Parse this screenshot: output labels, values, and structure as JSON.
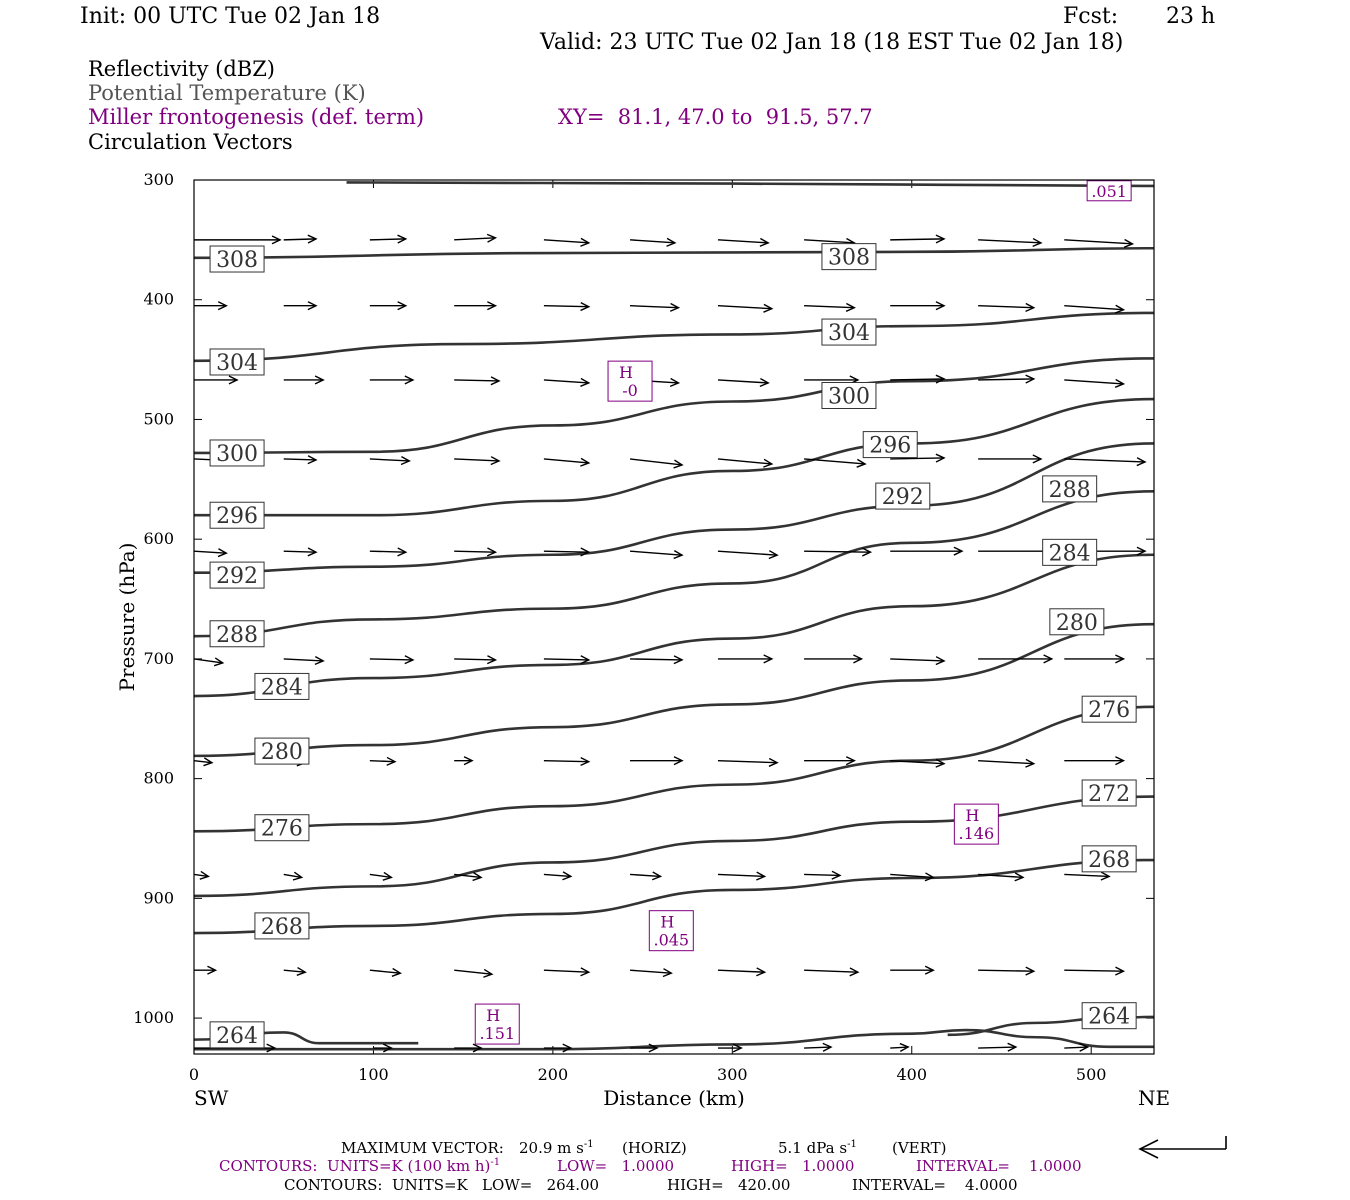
{
  "header": {
    "init": "Init: 00 UTC Tue 02 Jan 18",
    "fcst_label": "Fcst:",
    "fcst_value": "23 h",
    "valid": "Valid: 23 UTC Tue 02 Jan 18 (18 EST Tue 02 Jan 18)"
  },
  "legend": {
    "reflectivity": "Reflectivity (dBZ)",
    "theta": "Potential Temperature (K)",
    "frontogenesis": "Miller frontogenesis (def. term)",
    "xy": "XY=  81.1, 47.0 to  91.5, 57.7",
    "vectors": "Circulation Vectors"
  },
  "colors": {
    "purple": "#800080",
    "contour": "#333333",
    "gray_text": "#555555"
  },
  "footer": {
    "max_vector_label": "MAXIMUM VECTOR:",
    "max_vector_horiz": "20.9 m s",
    "horiz_tag": "(HORIZ)",
    "max_vector_vert": "5.1 dPa s",
    "vert_tag": "(VERT)",
    "purple_contours": "CONTOURS:  UNITS=K (100 km h)",
    "purple_low": "LOW=   1.0000",
    "purple_high": "HIGH=   1.0000",
    "purple_interval": "INTERVAL=    1.0000",
    "black_contours": "CONTOURS:  UNITS=K   LOW=   264.00",
    "black_high": "HIGH=   420.00",
    "black_interval": "INTERVAL=    4.0000",
    "superscript_minus1": "-1"
  },
  "chart_data": {
    "type": "cross-section",
    "xlabel": "Distance (km)",
    "ylabel": "Pressure (hPa)",
    "xlim": [
      0,
      535
    ],
    "ylim": [
      300,
      1030
    ],
    "y_scale": "linear, inverted (pressure decreasing upward)",
    "x_ticks": [
      "0",
      "100",
      "200",
      "300",
      "400",
      "500"
    ],
    "y_ticks": [
      "300",
      "400",
      "500",
      "600",
      "700",
      "800",
      "900",
      "1000"
    ],
    "left_end": "SW",
    "right_end": "NE",
    "theta_contours": [
      {
        "label": "308",
        "points": [
          [
            0,
            365
          ],
          [
            200,
            361
          ],
          [
            400,
            360
          ],
          [
            535,
            357
          ]
        ]
      },
      {
        "label": "304",
        "points": [
          [
            0,
            451
          ],
          [
            150,
            437
          ],
          [
            300,
            429
          ],
          [
            400,
            422
          ],
          [
            535,
            411
          ]
        ]
      },
      {
        "label": "300",
        "points": [
          [
            0,
            528
          ],
          [
            100,
            527
          ],
          [
            200,
            505
          ],
          [
            300,
            485
          ],
          [
            400,
            468
          ],
          [
            535,
            449
          ]
        ]
      },
      {
        "label": "296",
        "points": [
          [
            0,
            580
          ],
          [
            100,
            580
          ],
          [
            200,
            568
          ],
          [
            300,
            543
          ],
          [
            400,
            520
          ],
          [
            535,
            483
          ]
        ]
      },
      {
        "label": "292",
        "points": [
          [
            0,
            628
          ],
          [
            100,
            623
          ],
          [
            200,
            613
          ],
          [
            300,
            592
          ],
          [
            400,
            572
          ],
          [
            535,
            520
          ]
        ]
      },
      {
        "label": "288",
        "points": [
          [
            0,
            681
          ],
          [
            100,
            667
          ],
          [
            200,
            658
          ],
          [
            300,
            637
          ],
          [
            400,
            603
          ],
          [
            535,
            560
          ]
        ]
      },
      {
        "label": "284",
        "points": [
          [
            0,
            731
          ],
          [
            100,
            716
          ],
          [
            200,
            705
          ],
          [
            300,
            683
          ],
          [
            400,
            656
          ],
          [
            535,
            613
          ]
        ]
      },
      {
        "label": "280",
        "points": [
          [
            0,
            781
          ],
          [
            100,
            772
          ],
          [
            200,
            757
          ],
          [
            300,
            738
          ],
          [
            400,
            718
          ],
          [
            535,
            671
          ]
        ]
      },
      {
        "label": "276",
        "points": [
          [
            0,
            844
          ],
          [
            100,
            838
          ],
          [
            200,
            823
          ],
          [
            300,
            805
          ],
          [
            400,
            785
          ],
          [
            535,
            740
          ]
        ]
      },
      {
        "label": "272",
        "points": [
          [
            0,
            898
          ],
          [
            100,
            890
          ],
          [
            200,
            870
          ],
          [
            300,
            852
          ],
          [
            400,
            836
          ],
          [
            535,
            815
          ]
        ]
      },
      {
        "label": "268",
        "points": [
          [
            0,
            929
          ],
          [
            100,
            923
          ],
          [
            200,
            913
          ],
          [
            300,
            893
          ],
          [
            400,
            883
          ],
          [
            535,
            868
          ]
        ]
      },
      {
        "label": "264",
        "points": [
          [
            0,
            1018
          ],
          [
            50,
            1012
          ],
          [
            70,
            1021
          ],
          [
            100,
            1021
          ],
          [
            125,
            1021
          ]
        ]
      },
      {
        "label": "264",
        "points": [
          [
            420,
            1014
          ],
          [
            470,
            1004
          ],
          [
            510,
            1000
          ],
          [
            535,
            999
          ]
        ]
      },
      {
        "label": "",
        "points": [
          [
            0,
            1026
          ],
          [
            200,
            1026
          ],
          [
            300,
            1022
          ],
          [
            400,
            1013
          ],
          [
            430,
            1010
          ],
          [
            470,
            1016
          ],
          [
            510,
            1024
          ],
          [
            535,
            1024
          ]
        ]
      },
      {
        "label": "",
        "points": [
          [
            85,
            302
          ],
          [
            300,
            303
          ],
          [
            535,
            305
          ]
        ]
      }
    ],
    "theta_label_positions": [
      {
        "label": "308",
        "x": 24,
        "y": 366
      },
      {
        "label": "308",
        "x": 365,
        "y": 364
      },
      {
        "label": "304",
        "x": 24,
        "y": 452
      },
      {
        "label": "304",
        "x": 365,
        "y": 427
      },
      {
        "label": "300",
        "x": 24,
        "y": 528
      },
      {
        "label": "300",
        "x": 365,
        "y": 480
      },
      {
        "label": "296",
        "x": 24,
        "y": 580
      },
      {
        "label": "296",
        "x": 388,
        "y": 521
      },
      {
        "label": "292",
        "x": 24,
        "y": 630
      },
      {
        "label": "292",
        "x": 395,
        "y": 564
      },
      {
        "label": "288",
        "x": 24,
        "y": 679
      },
      {
        "label": "288",
        "x": 488,
        "y": 558
      },
      {
        "label": "284",
        "x": 49,
        "y": 723
      },
      {
        "label": "284",
        "x": 488,
        "y": 611
      },
      {
        "label": "280",
        "x": 49,
        "y": 777
      },
      {
        "label": "280",
        "x": 492,
        "y": 669
      },
      {
        "label": "276",
        "x": 49,
        "y": 841
      },
      {
        "label": "276",
        "x": 510,
        "y": 742
      },
      {
        "label": "272",
        "x": 510,
        "y": 812
      },
      {
        "label": "268",
        "x": 49,
        "y": 923
      },
      {
        "label": "268",
        "x": 510,
        "y": 867
      },
      {
        "label": "264",
        "x": 24,
        "y": 1014
      },
      {
        "label": "264",
        "x": 510,
        "y": 998
      }
    ],
    "highs": [
      {
        "symbol": "H",
        "value": "-0",
        "x": 243,
        "y": 468
      },
      {
        "symbol": "H",
        "value": ".146",
        "x": 436,
        "y": 838
      },
      {
        "symbol": "H",
        "value": ".045",
        "x": 266,
        "y": 927
      },
      {
        "symbol": "H",
        "value": ".151",
        "x": 169,
        "y": 1005
      },
      {
        "symbol": "",
        "value": ".051",
        "x": 510,
        "y": 309
      }
    ],
    "vector_rows": [
      {
        "p": 350,
        "vectors": [
          [
            0,
            48,
            0
          ],
          [
            50,
            68,
            -1
          ],
          [
            98,
            118,
            -1
          ],
          [
            145,
            168,
            -2
          ],
          [
            195,
            220,
            3
          ],
          [
            243,
            268,
            3
          ],
          [
            292,
            320,
            3
          ],
          [
            340,
            368,
            3
          ],
          [
            388,
            418,
            -1
          ],
          [
            437,
            472,
            3
          ],
          [
            485,
            523,
            4
          ]
        ]
      },
      {
        "p": 405,
        "vectors": [
          [
            0,
            18,
            0
          ],
          [
            50,
            68,
            0
          ],
          [
            98,
            118,
            0
          ],
          [
            145,
            168,
            0
          ],
          [
            195,
            220,
            1
          ],
          [
            243,
            270,
            2
          ],
          [
            292,
            322,
            3
          ],
          [
            340,
            368,
            2
          ],
          [
            388,
            418,
            0
          ],
          [
            437,
            468,
            2
          ],
          [
            485,
            518,
            4
          ]
        ]
      },
      {
        "p": 467,
        "vectors": [
          [
            0,
            24,
            0
          ],
          [
            50,
            72,
            0
          ],
          [
            98,
            122,
            0
          ],
          [
            145,
            170,
            1
          ],
          [
            195,
            220,
            3
          ],
          [
            243,
            270,
            3
          ],
          [
            292,
            320,
            3
          ],
          [
            340,
            370,
            0
          ],
          [
            388,
            418,
            -1
          ],
          [
            437,
            468,
            -1
          ],
          [
            485,
            518,
            4
          ]
        ]
      },
      {
        "p": 533,
        "vectors": [
          [
            0,
            24,
            2
          ],
          [
            50,
            68,
            1
          ],
          [
            98,
            120,
            2
          ],
          [
            145,
            170,
            2
          ],
          [
            195,
            220,
            4
          ],
          [
            243,
            272,
            6
          ],
          [
            292,
            322,
            5
          ],
          [
            340,
            374,
            5
          ],
          [
            388,
            418,
            -1
          ],
          [
            437,
            472,
            0
          ],
          [
            485,
            530,
            3
          ]
        ]
      },
      {
        "p": 610,
        "vectors": [
          [
            0,
            18,
            2
          ],
          [
            50,
            68,
            1
          ],
          [
            98,
            118,
            1
          ],
          [
            145,
            168,
            1
          ],
          [
            195,
            220,
            1
          ],
          [
            243,
            272,
            4
          ],
          [
            292,
            325,
            4
          ],
          [
            340,
            377,
            1
          ],
          [
            388,
            428,
            0
          ],
          [
            437,
            478,
            0
          ],
          [
            485,
            530,
            0
          ]
        ]
      },
      {
        "p": 700,
        "vectors": [
          [
            0,
            16,
            4
          ],
          [
            50,
            72,
            2
          ],
          [
            98,
            122,
            1
          ],
          [
            145,
            168,
            1
          ],
          [
            195,
            220,
            1
          ],
          [
            243,
            272,
            1
          ],
          [
            292,
            322,
            0
          ],
          [
            340,
            372,
            0
          ],
          [
            388,
            418,
            2
          ],
          [
            437,
            478,
            0
          ],
          [
            485,
            518,
            0
          ]
        ]
      },
      {
        "p": 785,
        "vectors": [
          [
            0,
            10,
            2
          ],
          [
            50,
            62,
            2
          ],
          [
            98,
            112,
            1
          ],
          [
            145,
            155,
            0
          ],
          [
            195,
            220,
            1
          ],
          [
            243,
            272,
            0
          ],
          [
            292,
            325,
            2
          ],
          [
            340,
            368,
            0
          ],
          [
            388,
            418,
            3
          ],
          [
            437,
            468,
            3
          ],
          [
            485,
            518,
            0
          ]
        ]
      },
      {
        "p": 880,
        "vectors": [
          [
            0,
            8,
            2
          ],
          [
            50,
            60,
            3
          ],
          [
            98,
            110,
            3
          ],
          [
            145,
            160,
            3
          ],
          [
            195,
            210,
            2
          ],
          [
            243,
            260,
            2
          ],
          [
            292,
            318,
            2
          ],
          [
            340,
            360,
            1
          ],
          [
            388,
            412,
            3
          ],
          [
            437,
            462,
            3
          ],
          [
            485,
            510,
            2
          ]
        ]
      },
      {
        "p": 960,
        "vectors": [
          [
            0,
            12,
            0
          ],
          [
            50,
            62,
            2
          ],
          [
            98,
            115,
            3
          ],
          [
            145,
            166,
            4
          ],
          [
            195,
            220,
            2
          ],
          [
            243,
            266,
            3
          ],
          [
            292,
            318,
            2
          ],
          [
            340,
            370,
            2
          ],
          [
            388,
            412,
            0
          ],
          [
            437,
            468,
            1
          ],
          [
            485,
            518,
            1
          ]
        ]
      },
      {
        "p": 1025,
        "vectors": [
          [
            0,
            45,
            0
          ],
          [
            100,
            110,
            0
          ],
          [
            145,
            160,
            0
          ],
          [
            195,
            210,
            0
          ],
          [
            243,
            258,
            0
          ],
          [
            292,
            305,
            0
          ],
          [
            340,
            355,
            -1
          ],
          [
            388,
            398,
            -1
          ],
          [
            437,
            458,
            -1
          ],
          [
            485,
            498,
            -1
          ]
        ]
      }
    ],
    "reference_vector": {
      "horiz": "20.9 m s^-1",
      "vert": "5.1 dPa s^-1"
    }
  }
}
